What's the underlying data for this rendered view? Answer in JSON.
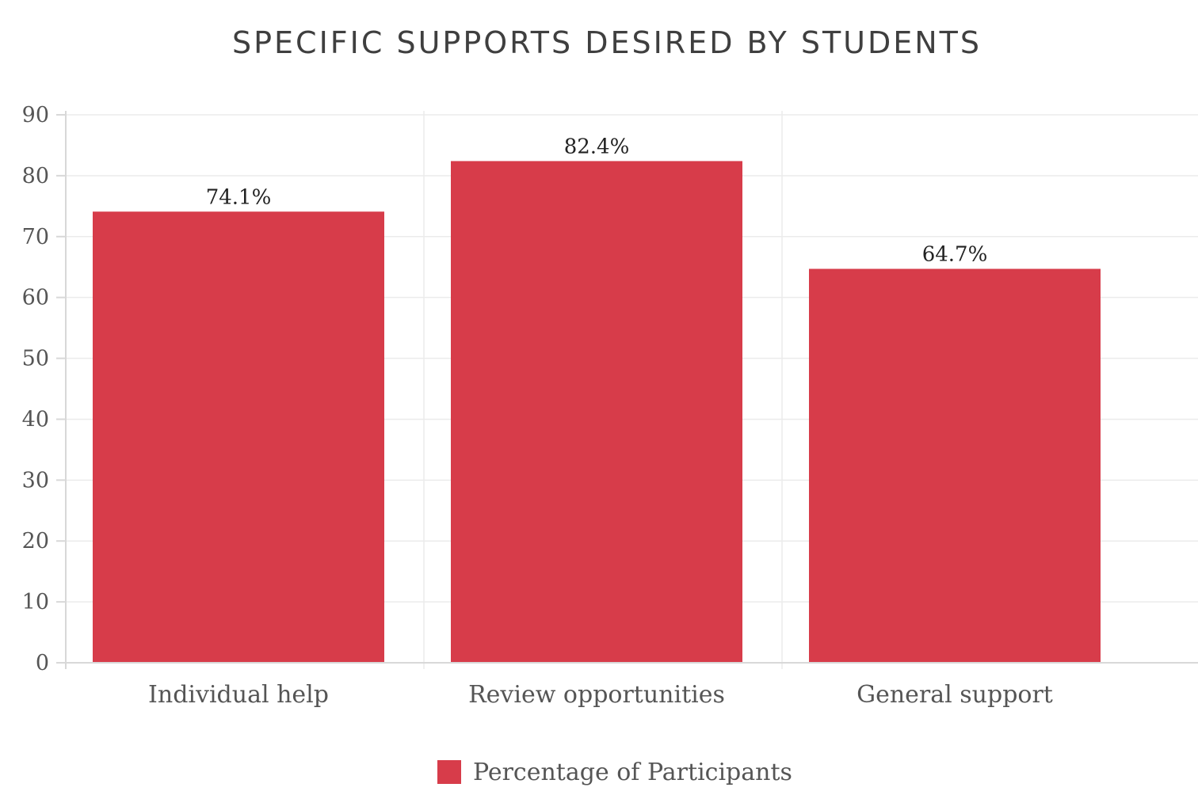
{
  "chart_data": {
    "type": "bar",
    "title": "SPECIFIC SUPPORTS DESIRED BY STUDENTS",
    "categories": [
      "Individual help",
      "Review opportunities",
      "General support"
    ],
    "series": [
      {
        "name": "Percentage of Participants",
        "values": [
          74.1,
          82.4,
          64.7
        ],
        "labels": [
          "74.1%",
          "82.4%",
          "64.7%"
        ],
        "color": "#d73c4a"
      }
    ],
    "ylim": [
      0,
      90
    ],
    "yticks": [
      "0",
      "10",
      "20",
      "30",
      "40",
      "50",
      "60",
      "70",
      "80",
      "90"
    ],
    "grid": true,
    "legend_position": "bottom-center"
  }
}
